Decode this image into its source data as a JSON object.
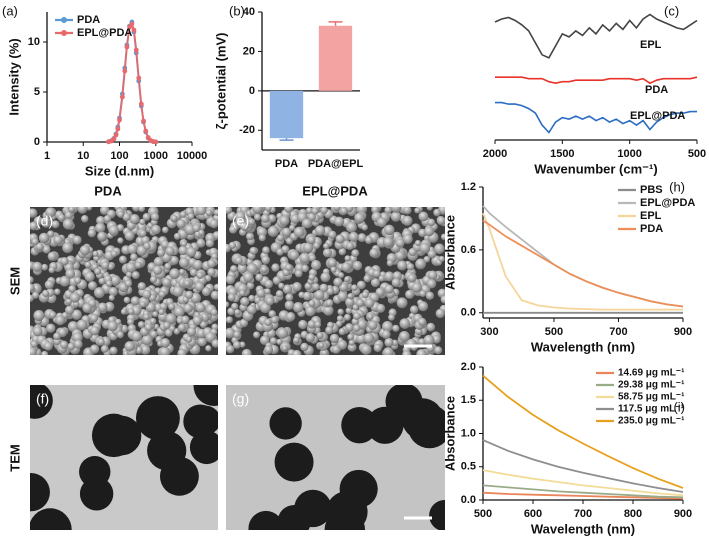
{
  "chart_data": [
    {
      "type": "line",
      "panel": "(a)",
      "xlabel": "Size (d.nm)",
      "ylabel": "Intensity (%)",
      "xscale": "log",
      "xlim": [
        1,
        10000
      ],
      "xticks": [
        1,
        10,
        100,
        1000,
        10000
      ],
      "ylim": [
        0,
        13
      ],
      "yticks": [
        0,
        5,
        10
      ],
      "markers": true,
      "legend": "upper left",
      "x": [
        50,
        60,
        70,
        80,
        90,
        100,
        120,
        140,
        160,
        190,
        220,
        250,
        290,
        340,
        400,
        460,
        530,
        620,
        720,
        850,
        1000
      ],
      "series": [
        {
          "name": "PDA",
          "color": "#5b9bd5",
          "values": [
            0.03,
            0.13,
            0.36,
            0.8,
            1.5,
            2.4,
            4.8,
            7.4,
            9.7,
            11.6,
            12.0,
            11.0,
            8.9,
            6.1,
            3.6,
            2.0,
            1.0,
            0.4,
            0.14,
            0.04,
            0.01
          ]
        },
        {
          "name": "EPL@PDA",
          "color": "#e8696b",
          "values": [
            0.02,
            0.1,
            0.3,
            0.7,
            1.3,
            2.2,
            4.5,
            7.1,
            9.5,
            11.5,
            11.8,
            11.2,
            9.2,
            6.4,
            3.8,
            2.1,
            1.1,
            0.45,
            0.16,
            0.05,
            0.01
          ]
        }
      ]
    },
    {
      "type": "bar",
      "panel": "(b)",
      "ylabel": "ζ-potential (mV)",
      "categories": [
        "PDA",
        "PDA@EPL"
      ],
      "values": [
        -24,
        33
      ],
      "errors": [
        1,
        2
      ],
      "colors": [
        "#8fb4e3",
        "#f4a3a3"
      ],
      "ylim": [
        -30,
        40
      ],
      "yticks": [
        -20,
        0,
        20,
        40
      ]
    },
    {
      "type": "line",
      "panel": "(c)",
      "xlabel": "Wavenumber (cm⁻¹)",
      "xlim": [
        2000,
        500
      ],
      "xticks": [
        2000,
        1500,
        1000,
        500
      ],
      "ylim": [
        15,
        102
      ],
      "legend": "inline",
      "x": [
        2000,
        1950,
        1900,
        1850,
        1800,
        1750,
        1700,
        1650,
        1600,
        1550,
        1500,
        1450,
        1400,
        1350,
        1300,
        1250,
        1200,
        1150,
        1100,
        1050,
        1000,
        950,
        900,
        850,
        800,
        750,
        700,
        650,
        600,
        550,
        500
      ],
      "series": [
        {
          "name": "EPL",
          "color": "#444444",
          "values": [
            94,
            96,
            97,
            95,
            92,
            88,
            80,
            72,
            70,
            78,
            86,
            84,
            88,
            85,
            90,
            86,
            92,
            88,
            93,
            89,
            95,
            90,
            96,
            99,
            96,
            94,
            92,
            90,
            89,
            92,
            95
          ]
        },
        {
          "name": "PDA",
          "color": "#e8332a",
          "values": [
            57,
            57,
            57,
            57,
            57,
            56,
            56,
            56,
            54,
            53,
            54,
            54,
            55,
            55,
            55,
            55,
            55,
            56,
            56,
            56,
            56,
            55,
            56,
            53,
            55,
            56,
            56,
            56,
            56,
            56,
            57
          ]
        },
        {
          "name": "EPL@PDA",
          "color": "#2b6cc4",
          "values": [
            40,
            40,
            39,
            39,
            38,
            36,
            33,
            25,
            20,
            27,
            30,
            29,
            31,
            29,
            31,
            28,
            30,
            27,
            29,
            26,
            28,
            25,
            28,
            22,
            27,
            30,
            32,
            33,
            33,
            34,
            34
          ]
        }
      ]
    },
    {
      "type": "line",
      "panel": "(h)",
      "xlabel": "Wavelength (nm)",
      "ylabel": "Absorbance",
      "xlim": [
        280,
        900
      ],
      "xticks": [
        300,
        500,
        700,
        900
      ],
      "ylim": [
        -0.05,
        1.2
      ],
      "yticks": [
        {
          "value": 0,
          "label": "0.0"
        },
        {
          "value": 0.6,
          "label": "0.6"
        },
        {
          "value": 1.2,
          "label": "1.2"
        }
      ],
      "legend": "upper right",
      "x": [
        280,
        300,
        350,
        400,
        450,
        500,
        550,
        600,
        650,
        700,
        750,
        800,
        850,
        900
      ],
      "series": [
        {
          "name": "PBS",
          "color": "#8c8c8c",
          "values": [
            0,
            0,
            0,
            0,
            0,
            0,
            0,
            0,
            0,
            0,
            0,
            0,
            0,
            0
          ]
        },
        {
          "name": "EPL@PDA",
          "color": "#b8b8b8",
          "values": [
            1.02,
            0.95,
            0.82,
            0.7,
            0.58,
            0.46,
            0.37,
            0.3,
            0.24,
            0.19,
            0.15,
            0.11,
            0.08,
            0.06
          ]
        },
        {
          "name": "EPL",
          "color": "#f5d59a",
          "values": [
            0.95,
            0.8,
            0.35,
            0.12,
            0.07,
            0.05,
            0.04,
            0.035,
            0.03,
            0.03,
            0.03,
            0.03,
            0.03,
            0.03
          ]
        },
        {
          "name": "PDA",
          "color": "#ee8f58",
          "values": [
            0.88,
            0.84,
            0.73,
            0.64,
            0.55,
            0.46,
            0.37,
            0.3,
            0.24,
            0.19,
            0.15,
            0.11,
            0.08,
            0.06
          ]
        }
      ]
    },
    {
      "type": "line",
      "panel": "(i)",
      "xlabel": "Wavelength (nm)",
      "ylabel": "Absorbance",
      "xlim": [
        500,
        900
      ],
      "xticks": [
        500,
        600,
        700,
        800,
        900
      ],
      "ylim": [
        0,
        2.0
      ],
      "yticks": [
        {
          "value": 0,
          "label": "0.0"
        },
        {
          "value": 0.5,
          "label": "0.5"
        },
        {
          "value": 1.0,
          "label": "1.0"
        },
        {
          "value": 1.5,
          "label": "1.5"
        },
        {
          "value": 2.0,
          "label": "2.0"
        }
      ],
      "legend": "upper right",
      "x": [
        500,
        550,
        600,
        650,
        700,
        750,
        800,
        850,
        900
      ],
      "series": [
        {
          "name": "14.69 μg mL⁻¹",
          "color": "#e8855a",
          "values": [
            0.11,
            0.09,
            0.08,
            0.07,
            0.06,
            0.05,
            0.04,
            0.03,
            0.02
          ]
        },
        {
          "name": "29.38 μg mL⁻¹",
          "color": "#9aab8a",
          "values": [
            0.22,
            0.19,
            0.16,
            0.13,
            0.11,
            0.09,
            0.07,
            0.05,
            0.04
          ]
        },
        {
          "name": "58.75 μg mL⁻¹",
          "color": "#f2dc98",
          "values": [
            0.45,
            0.38,
            0.32,
            0.27,
            0.22,
            0.18,
            0.14,
            0.1,
            0.07
          ]
        },
        {
          "name": "117.5 μg mL⁻¹",
          "color": "#8e8e8e",
          "values": [
            0.9,
            0.74,
            0.61,
            0.5,
            0.41,
            0.33,
            0.25,
            0.18,
            0.12
          ]
        },
        {
          "name": "235.0 μg mL⁻¹",
          "color": "#e8a020",
          "values": [
            1.87,
            1.55,
            1.28,
            1.05,
            0.85,
            0.66,
            0.48,
            0.32,
            0.18
          ]
        }
      ]
    }
  ],
  "micrographs": {
    "columns": [
      "PDA",
      "EPL@PDA"
    ],
    "rows": [
      "SEM",
      "TEM"
    ],
    "panels": [
      "(d)",
      "(e)",
      "(f)",
      "(g)"
    ]
  }
}
